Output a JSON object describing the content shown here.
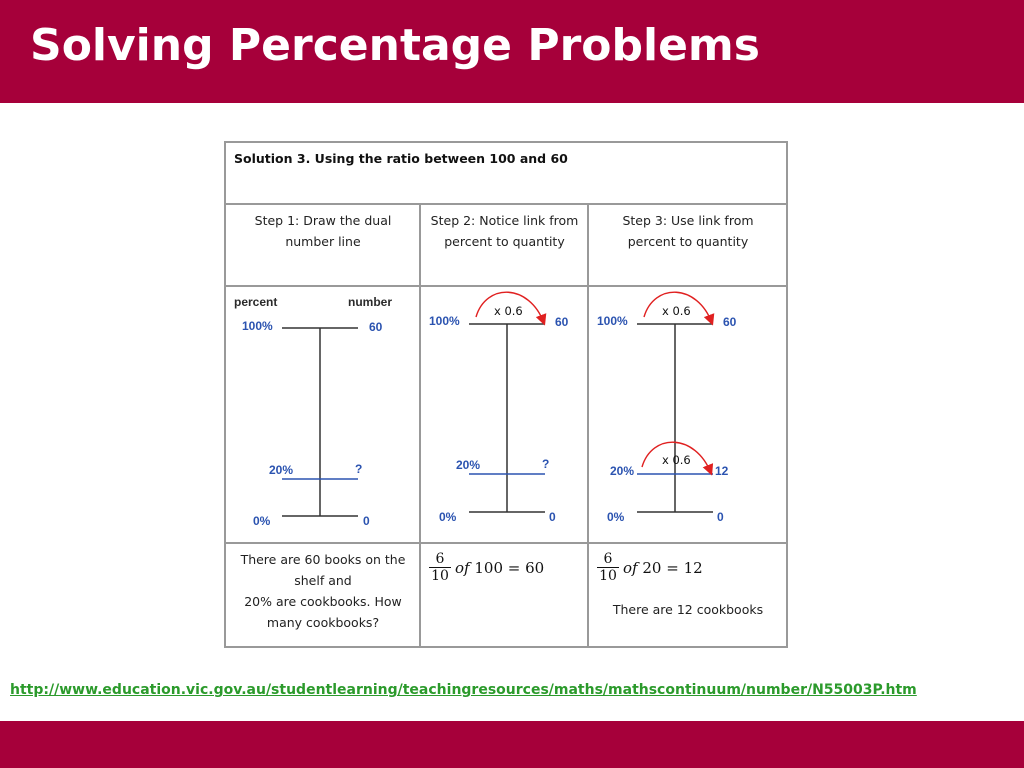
{
  "slide": {
    "title": "Solving Percentage Problems",
    "source_url": "http://www.education.vic.gov.au/studentlearning/teachingresources/maths/mathscontinuum/number/N55003P.htm",
    "colors": {
      "banner": "#a6003a",
      "link": "#2b9a2b",
      "number_line_blue": "#2b53b0",
      "arrow_red": "#e02020"
    }
  },
  "solution": {
    "title": "Solution 3. Using the ratio between 100 and 60",
    "steps": [
      {
        "line1": "Step 1: Draw the dual",
        "line2": "number line"
      },
      {
        "line1": "Step 2: Notice link from",
        "line2": "percent to quantity"
      },
      {
        "line1": "Step 3: Use link from",
        "line2": "percent to quantity"
      }
    ],
    "diagram": {
      "percent_header": "percent",
      "number_header": "number",
      "pct_100": "100%",
      "pct_20": "20%",
      "pct_0": "0%",
      "num_60": "60",
      "num_unknown": "?",
      "num_0": "0",
      "num_12": "12",
      "multiplier": "x 0.6"
    },
    "problem": {
      "line1": "There are 60 books on the",
      "line2": "shelf and",
      "line3": "20% are cookbooks. How",
      "line4": "many cookbooks?"
    },
    "calc2": {
      "numerator": "6",
      "denominator": "10",
      "of_word": "of",
      "rest": "100 = 60"
    },
    "calc3": {
      "numerator": "6",
      "denominator": "10",
      "of_word": "of",
      "rest": "20 = 12",
      "answer": "There are 12 cookbooks"
    }
  }
}
